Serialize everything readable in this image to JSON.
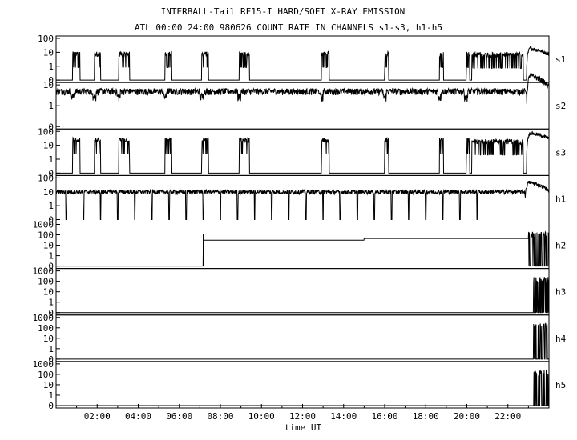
{
  "chart_data": {
    "type": "line",
    "title": "INTERBALL-Tail RF15-I HARD/SOFT X-RAY EMISSION",
    "subtitle": "ATL 00:00 24:00 980626  COUNT RATE IN CHANNELS s1-s3, h1-h5",
    "xlabel": "time UT",
    "xlim": [
      "00:00",
      "24:00"
    ],
    "x_ticks": [
      "02:00",
      "04:00",
      "06:00",
      "08:00",
      "10:00",
      "12:00",
      "14:00",
      "16:00",
      "18:00",
      "20:00",
      "22:00"
    ],
    "yscale": "log",
    "grid": false,
    "panels": [
      {
        "name": "s1",
        "y_ticks": [
          "0",
          "1",
          "10",
          "100"
        ],
        "ylim": [
          0,
          100
        ],
        "baseline": 0,
        "bursts": [
          {
            "start": "00:48",
            "end": "01:10",
            "value": 8
          },
          {
            "start": "01:52",
            "end": "02:10",
            "value": 8
          },
          {
            "start": "03:03",
            "end": "03:35",
            "value": 8
          },
          {
            "start": "05:18",
            "end": "05:38",
            "value": 8
          },
          {
            "start": "07:05",
            "end": "07:25",
            "value": 8
          },
          {
            "start": "08:55",
            "end": "09:25",
            "value": 8
          },
          {
            "start": "12:55",
            "end": "13:18",
            "value": 8
          },
          {
            "start": "16:00",
            "end": "16:12",
            "value": 8
          },
          {
            "start": "18:40",
            "end": "18:52",
            "value": 8
          },
          {
            "start": "19:58",
            "end": "20:08",
            "value": 8
          },
          {
            "start": "20:15",
            "end": "22:45",
            "value": 7
          }
        ],
        "end_rise": {
          "start": "22:55",
          "end": "24:00",
          "peak": 20,
          "final": 7
        }
      },
      {
        "name": "s2",
        "y_ticks": [
          "0",
          "1",
          "10"
        ],
        "ylim": [
          0,
          10
        ],
        "baseline": 5,
        "dips": [
          "00:48",
          "01:52",
          "03:03",
          "05:18",
          "07:05",
          "08:55",
          "12:55",
          "16:00",
          "18:40",
          "19:58"
        ],
        "end_rise": {
          "start": "22:55",
          "end": "24:00",
          "peak": 30,
          "final": 8
        }
      },
      {
        "name": "s3",
        "y_ticks": [
          "0",
          "1",
          "10",
          "100"
        ],
        "ylim": [
          0,
          100
        ],
        "baseline": 0,
        "bursts": [
          {
            "start": "00:48",
            "end": "01:10",
            "value": 25
          },
          {
            "start": "01:52",
            "end": "02:10",
            "value": 25
          },
          {
            "start": "03:03",
            "end": "03:35",
            "value": 25
          },
          {
            "start": "05:18",
            "end": "05:38",
            "value": 25
          },
          {
            "start": "07:05",
            "end": "07:25",
            "value": 25
          },
          {
            "start": "08:55",
            "end": "09:25",
            "value": 25
          },
          {
            "start": "12:55",
            "end": "13:18",
            "value": 25
          },
          {
            "start": "16:00",
            "end": "16:12",
            "value": 25
          },
          {
            "start": "18:40",
            "end": "18:52",
            "value": 25
          },
          {
            "start": "19:58",
            "end": "20:08",
            "value": 25
          },
          {
            "start": "20:15",
            "end": "22:45",
            "value": 20
          }
        ],
        "end_rise": {
          "start": "22:55",
          "end": "24:00",
          "peak": 80,
          "final": 30
        }
      },
      {
        "name": "h1",
        "y_ticks": [
          "0",
          "1",
          "10",
          "100"
        ],
        "ylim": [
          0,
          100
        ],
        "baseline": 10,
        "dropouts": [
          "00:30",
          "01:20",
          "02:10",
          "03:00",
          "03:50",
          "04:40",
          "05:30",
          "06:20",
          "07:10",
          "08:00",
          "08:50",
          "09:40",
          "10:30",
          "11:20",
          "12:10",
          "13:00",
          "13:50",
          "14:40",
          "15:30",
          "16:20",
          "17:10",
          "18:00",
          "18:50",
          "19:40",
          "20:30"
        ],
        "end_rise": {
          "start": "22:50",
          "end": "24:00",
          "peak": 50,
          "final": 12
        }
      },
      {
        "name": "h2",
        "y_ticks": [
          "0",
          "1",
          "10",
          "100",
          "1000"
        ],
        "ylim": [
          0,
          1000
        ],
        "segments": [
          {
            "start": "07:10",
            "end": "15:00",
            "value": 30
          },
          {
            "start": "15:00",
            "end": "23:00",
            "value": 45
          }
        ],
        "spike": {
          "time": "07:10",
          "value": 120
        },
        "end_bursts": {
          "start": "23:00",
          "end": "24:00",
          "value": 150
        }
      },
      {
        "name": "h3",
        "y_ticks": [
          "0",
          "1",
          "10",
          "100",
          "1000"
        ],
        "ylim": [
          0,
          1000
        ],
        "end_bursts": {
          "start": "23:15",
          "end": "24:00",
          "value": 200
        }
      },
      {
        "name": "h4",
        "y_ticks": [
          "0",
          "1",
          "10",
          "100",
          "1000"
        ],
        "ylim": [
          0,
          1000
        ],
        "end_bursts": {
          "start": "23:15",
          "end": "24:00",
          "value": 200
        }
      },
      {
        "name": "h5",
        "y_ticks": [
          "0",
          "1",
          "10",
          "100",
          "1000"
        ],
        "ylim": [
          0,
          1000
        ],
        "end_bursts": {
          "start": "23:15",
          "end": "24:00",
          "value": 200
        }
      }
    ]
  }
}
